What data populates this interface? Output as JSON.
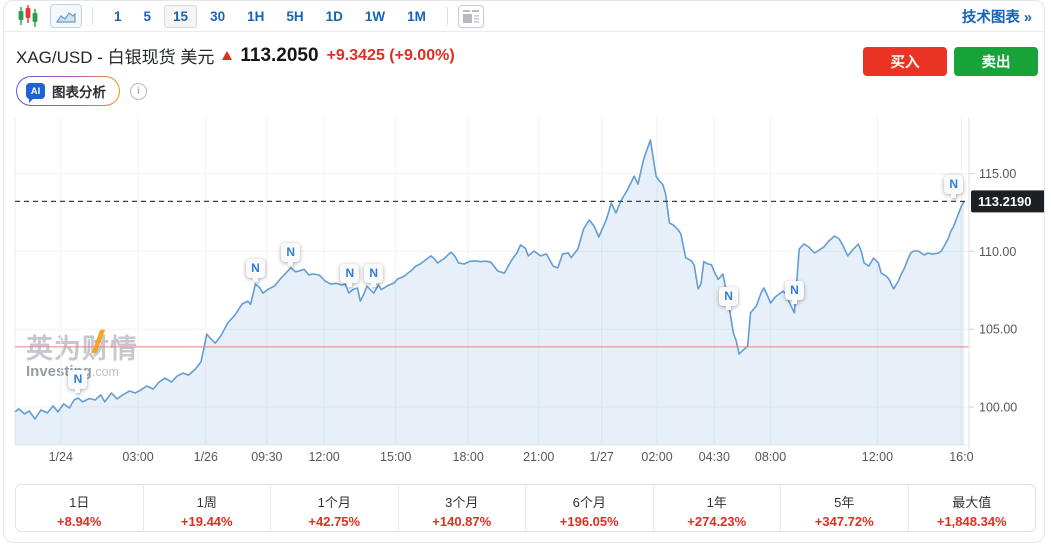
{
  "toolbar": {
    "timeframes": [
      "1",
      "5",
      "15",
      "30",
      "1H",
      "5H",
      "1D",
      "1W",
      "1M"
    ],
    "selected_timeframe": "15",
    "tech_chart_link": "技术图表 »"
  },
  "header": {
    "title": "XAG/USD - 白银现货 美元",
    "price": "113.2050",
    "change": "+9.3425 (+9.00%)",
    "ai_button": {
      "icon_text": "AI",
      "label": "图表分析"
    },
    "info_icon_glyph": "i",
    "buy_label": "买入",
    "sell_label": "卖出"
  },
  "chart_data": {
    "type": "area",
    "symbol": "XAG/USD",
    "interval": "15 minutes",
    "last_price": 113.219,
    "last_price_label": "113.2190",
    "previous_close": 103.8625,
    "ylim": [
      97.56,
      118.64
    ],
    "grid": true,
    "y_ticks": [
      {
        "label": "115.00",
        "v": 115
      },
      {
        "label": "110.00",
        "v": 110
      },
      {
        "label": "105.00",
        "v": 105
      },
      {
        "label": "100.00",
        "v": 100
      }
    ],
    "x_ticks": [
      {
        "label": "1/24",
        "f": 0.048
      },
      {
        "label": "03:00",
        "f": 0.129
      },
      {
        "label": "1/26",
        "f": 0.2
      },
      {
        "label": "09:30",
        "f": 0.264
      },
      {
        "label": "12:00",
        "f": 0.324
      },
      {
        "label": "15:00",
        "f": 0.399
      },
      {
        "label": "18:00",
        "f": 0.475
      },
      {
        "label": "21:00",
        "f": 0.549
      },
      {
        "label": "1/27",
        "f": 0.615
      },
      {
        "label": "02:00",
        "f": 0.673
      },
      {
        "label": "04:30",
        "f": 0.733
      },
      {
        "label": "08:00",
        "f": 0.792
      },
      {
        "label": "12:00",
        "f": 0.904
      },
      {
        "label": "16:0",
        "f": 0.992
      }
    ],
    "series": [
      {
        "name": "XAG/USD price",
        "points": [
          [
            0.0,
            99.69
          ],
          [
            0.004,
            99.88
          ],
          [
            0.01,
            99.56
          ],
          [
            0.015,
            99.75
          ],
          [
            0.021,
            99.23
          ],
          [
            0.027,
            99.81
          ],
          [
            0.034,
            99.62
          ],
          [
            0.04,
            100.07
          ],
          [
            0.045,
            99.69
          ],
          [
            0.051,
            100.2
          ],
          [
            0.057,
            99.94
          ],
          [
            0.062,
            100.46
          ],
          [
            0.066,
            100.58
          ],
          [
            0.071,
            100.33
          ],
          [
            0.078,
            100.55
          ],
          [
            0.084,
            100.45
          ],
          [
            0.09,
            100.78
          ],
          [
            0.094,
            100.33
          ],
          [
            0.101,
            100.9
          ],
          [
            0.107,
            100.52
          ],
          [
            0.113,
            100.78
          ],
          [
            0.12,
            101.03
          ],
          [
            0.126,
            100.9
          ],
          [
            0.132,
            101.1
          ],
          [
            0.138,
            101.35
          ],
          [
            0.145,
            101.16
          ],
          [
            0.151,
            101.61
          ],
          [
            0.157,
            101.86
          ],
          [
            0.164,
            101.61
          ],
          [
            0.17,
            101.99
          ],
          [
            0.176,
            102.18
          ],
          [
            0.182,
            102.05
          ],
          [
            0.189,
            102.44
          ],
          [
            0.195,
            102.9
          ],
          [
            0.201,
            104.69
          ],
          [
            0.205,
            104.4
          ],
          [
            0.21,
            104.11
          ],
          [
            0.216,
            104.6
          ],
          [
            0.223,
            105.4
          ],
          [
            0.231,
            105.95
          ],
          [
            0.238,
            106.62
          ],
          [
            0.244,
            106.81
          ],
          [
            0.247,
            106.6
          ],
          [
            0.252,
            107.9
          ],
          [
            0.256,
            107.7
          ],
          [
            0.26,
            107.32
          ],
          [
            0.266,
            107.6
          ],
          [
            0.272,
            107.77
          ],
          [
            0.279,
            108.3
          ],
          [
            0.284,
            108.61
          ],
          [
            0.289,
            108.95
          ],
          [
            0.294,
            108.7
          ],
          [
            0.298,
            108.74
          ],
          [
            0.303,
            108.85
          ],
          [
            0.308,
            108.5
          ],
          [
            0.313,
            108.55
          ],
          [
            0.319,
            108.48
          ],
          [
            0.325,
            108.1
          ],
          [
            0.331,
            107.9
          ],
          [
            0.337,
            107.95
          ],
          [
            0.342,
            107.84
          ],
          [
            0.346,
            107.9
          ],
          [
            0.35,
            107.32
          ],
          [
            0.354,
            107.55
          ],
          [
            0.359,
            107.65
          ],
          [
            0.362,
            106.81
          ],
          [
            0.366,
            107.3
          ],
          [
            0.369,
            107.77
          ],
          [
            0.373,
            107.5
          ],
          [
            0.376,
            107.32
          ],
          [
            0.381,
            107.84
          ],
          [
            0.384,
            107.55
          ],
          [
            0.388,
            107.7
          ],
          [
            0.392,
            107.84
          ],
          [
            0.397,
            107.95
          ],
          [
            0.401,
            108.23
          ],
          [
            0.408,
            108.4
          ],
          [
            0.412,
            108.61
          ],
          [
            0.416,
            108.8
          ],
          [
            0.42,
            109.06
          ],
          [
            0.425,
            109.2
          ],
          [
            0.429,
            109.39
          ],
          [
            0.436,
            109.71
          ],
          [
            0.44,
            109.5
          ],
          [
            0.443,
            109.26
          ],
          [
            0.45,
            109.55
          ],
          [
            0.457,
            109.96
          ],
          [
            0.461,
            109.7
          ],
          [
            0.465,
            109.26
          ],
          [
            0.471,
            109.19
          ],
          [
            0.476,
            109.35
          ],
          [
            0.482,
            109.39
          ],
          [
            0.488,
            109.35
          ],
          [
            0.494,
            109.37
          ],
          [
            0.499,
            109.3
          ],
          [
            0.506,
            108.74
          ],
          [
            0.513,
            108.61
          ],
          [
            0.52,
            109.39
          ],
          [
            0.526,
            109.9
          ],
          [
            0.53,
            110.42
          ],
          [
            0.535,
            110.2
          ],
          [
            0.538,
            109.71
          ],
          [
            0.544,
            110.03
          ],
          [
            0.551,
            109.71
          ],
          [
            0.557,
            109.84
          ],
          [
            0.564,
            109.06
          ],
          [
            0.569,
            108.94
          ],
          [
            0.574,
            109.84
          ],
          [
            0.58,
            109.9
          ],
          [
            0.583,
            109.6
          ],
          [
            0.59,
            110.16
          ],
          [
            0.596,
            111.44
          ],
          [
            0.602,
            112.02
          ],
          [
            0.607,
            111.63
          ],
          [
            0.612,
            110.93
          ],
          [
            0.62,
            112.08
          ],
          [
            0.625,
            113.11
          ],
          [
            0.63,
            112.47
          ],
          [
            0.635,
            113.24
          ],
          [
            0.643,
            114.07
          ],
          [
            0.649,
            114.84
          ],
          [
            0.653,
            114.33
          ],
          [
            0.659,
            115.94
          ],
          [
            0.666,
            117.16
          ],
          [
            0.672,
            114.84
          ],
          [
            0.675,
            114.56
          ],
          [
            0.679,
            114.3
          ],
          [
            0.682,
            113.69
          ],
          [
            0.686,
            111.83
          ],
          [
            0.69,
            111.7
          ],
          [
            0.695,
            111.4
          ],
          [
            0.698,
            111.12
          ],
          [
            0.703,
            109.6
          ],
          [
            0.709,
            109.4
          ],
          [
            0.712,
            109.1
          ],
          [
            0.716,
            107.59
          ],
          [
            0.719,
            107.9
          ],
          [
            0.722,
            109.35
          ],
          [
            0.726,
            109.2
          ],
          [
            0.73,
            109.15
          ],
          [
            0.733,
            108.7
          ],
          [
            0.737,
            108.2
          ],
          [
            0.74,
            108.4
          ],
          [
            0.742,
            108.55
          ],
          [
            0.747,
            107.01
          ],
          [
            0.753,
            104.76
          ],
          [
            0.756,
            104.25
          ],
          [
            0.759,
            103.41
          ],
          [
            0.763,
            103.65
          ],
          [
            0.766,
            103.8
          ],
          [
            0.768,
            103.93
          ],
          [
            0.771,
            106.05
          ],
          [
            0.777,
            106.49
          ],
          [
            0.782,
            107.33
          ],
          [
            0.785,
            107.65
          ],
          [
            0.789,
            107.13
          ],
          [
            0.792,
            106.68
          ],
          [
            0.796,
            107.01
          ],
          [
            0.798,
            107.13
          ],
          [
            0.801,
            107.26
          ],
          [
            0.805,
            107.45
          ],
          [
            0.808,
            107.26
          ],
          [
            0.811,
            106.81
          ],
          [
            0.817,
            106.05
          ],
          [
            0.822,
            110.16
          ],
          [
            0.827,
            110.48
          ],
          [
            0.832,
            110.29
          ],
          [
            0.838,
            109.9
          ],
          [
            0.843,
            110.1
          ],
          [
            0.848,
            110.29
          ],
          [
            0.853,
            110.67
          ],
          [
            0.859,
            110.99
          ],
          [
            0.864,
            110.8
          ],
          [
            0.868,
            110.35
          ],
          [
            0.873,
            109.71
          ],
          [
            0.878,
            110.1
          ],
          [
            0.884,
            110.48
          ],
          [
            0.887,
            110.03
          ],
          [
            0.89,
            109.26
          ],
          [
            0.895,
            109.06
          ],
          [
            0.9,
            109.58
          ],
          [
            0.905,
            109.26
          ],
          [
            0.908,
            108.61
          ],
          [
            0.913,
            108.42
          ],
          [
            0.916,
            108.23
          ],
          [
            0.921,
            107.59
          ],
          [
            0.926,
            108.1
          ],
          [
            0.929,
            108.55
          ],
          [
            0.932,
            108.87
          ],
          [
            0.936,
            109.51
          ],
          [
            0.939,
            109.9
          ],
          [
            0.942,
            110.03
          ],
          [
            0.947,
            110.03
          ],
          [
            0.95,
            109.9
          ],
          [
            0.953,
            109.77
          ],
          [
            0.957,
            109.9
          ],
          [
            0.96,
            109.84
          ],
          [
            0.963,
            109.84
          ],
          [
            0.968,
            109.9
          ],
          [
            0.971,
            110.03
          ],
          [
            0.974,
            110.35
          ],
          [
            0.978,
            110.8
          ],
          [
            0.981,
            111.31
          ],
          [
            0.984,
            111.63
          ],
          [
            0.988,
            112.27
          ],
          [
            0.992,
            112.91
          ],
          [
            0.995,
            113.22
          ]
        ]
      }
    ],
    "news_marker_letter": "N",
    "news_markers": [
      {
        "f": 0.066,
        "p": 101.74
      },
      {
        "f": 0.252,
        "p": 108.88
      },
      {
        "f": 0.289,
        "p": 109.9
      },
      {
        "f": 0.351,
        "p": 108.55
      },
      {
        "f": 0.376,
        "p": 108.55
      },
      {
        "f": 0.748,
        "p": 107.08
      },
      {
        "f": 0.817,
        "p": 107.46
      },
      {
        "f": 0.984,
        "p": 114.27
      }
    ],
    "watermark": {
      "title": "英为财情",
      "subtitle_bold": "Investing",
      "subtitle_light": ".com"
    },
    "colors": {
      "line": "#639dd4",
      "fill": "rgba(108,162,214,0.16)",
      "previous_close_line": "#f08078",
      "last_price_dash": "#3d4043",
      "price_tag_bg": "#1d2023",
      "grid": "#f1f2f3",
      "axis_text": "#54585c"
    }
  },
  "footer": {
    "cells": [
      {
        "label": "1日",
        "value": "+8.94%"
      },
      {
        "label": "1周",
        "value": "+19.44%"
      },
      {
        "label": "1个月",
        "value": "+42.75%"
      },
      {
        "label": "3个月",
        "value": "+140.87%"
      },
      {
        "label": "6个月",
        "value": "+196.05%"
      },
      {
        "label": "1年",
        "value": "+274.23%"
      },
      {
        "label": "5年",
        "value": "+347.72%"
      },
      {
        "label": "最大值",
        "value": "+1,848.34%"
      }
    ]
  }
}
